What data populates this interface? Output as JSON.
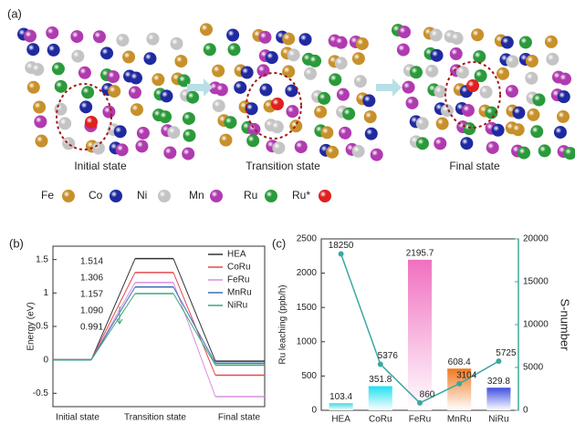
{
  "panel_a": {
    "label": "(a)",
    "states": [
      "Initial state",
      "Transition state",
      "Final state"
    ],
    "legend": [
      {
        "name": "Fe",
        "color": "#c8902a"
      },
      {
        "name": "Co",
        "color": "#1f2aa0"
      },
      {
        "name": "Ni",
        "color": "#c4c4c4"
      },
      {
        "name": "Mn",
        "color": "#b03ab0"
      },
      {
        "name": "Ru",
        "color": "#2a9a3a"
      },
      {
        "name": "Ru*",
        "color": "#e02020"
      }
    ]
  },
  "chart_data": [
    {
      "type": "energy_profile",
      "panel": "(b)",
      "ylabel": "Energy (eV)",
      "categories": [
        "Initial state",
        "Transition state",
        "Final state"
      ],
      "series": [
        {
          "name": "HEA",
          "color": "#333333",
          "values": [
            0,
            1.514,
            -0.02
          ],
          "value_labels": [
            null,
            "1.514",
            null
          ]
        },
        {
          "name": "CoRu",
          "color": "#e8474c",
          "values": [
            0,
            1.306,
            -0.23
          ],
          "value_labels": [
            null,
            "1.306",
            null
          ]
        },
        {
          "name": "FeRu",
          "color": "#d98ee0",
          "values": [
            0,
            1.157,
            -0.55
          ],
          "value_labels": [
            null,
            "1.157",
            null
          ]
        },
        {
          "name": "MnRu",
          "color": "#3b6fb6",
          "values": [
            0,
            1.09,
            -0.05
          ],
          "value_labels": [
            null,
            "1.090",
            null
          ]
        },
        {
          "name": "NiRu",
          "color": "#3aa67a",
          "values": [
            0,
            0.991,
            -0.08
          ],
          "value_labels": [
            null,
            "0.991",
            null
          ]
        }
      ],
      "ylim": [
        -0.7,
        1.7
      ],
      "yticks": [
        -0.5,
        0,
        0.5,
        1,
        1.5
      ],
      "legend": "upper right"
    },
    {
      "type": "bar_line",
      "panel": "(c)",
      "ylabel": "Ru leaching (ppb/h)",
      "y2label": "S-number",
      "categories": [
        "HEA",
        "CoRu",
        "FeRu",
        "MnRu",
        "NiRu"
      ],
      "series": [
        {
          "name": "Ru leaching",
          "type": "bar",
          "colors": [
            "#40d8e0",
            "#20e0f0",
            "#f070c0",
            "#f07820",
            "#4050e0"
          ],
          "values": [
            103.4,
            351.8,
            2195.7,
            608.4,
            329.8
          ]
        },
        {
          "name": "S-number",
          "type": "line",
          "axis": "y2",
          "color": "#3aa8a0",
          "values": [
            18250,
            5376,
            860,
            3104,
            5725
          ]
        }
      ],
      "ylim": [
        0,
        2500
      ],
      "yticks": [
        0,
        500,
        1000,
        1500,
        2000,
        2500
      ],
      "y2lim": [
        0,
        20000
      ],
      "y2ticks": [
        0,
        5000,
        10000,
        15000,
        20000
      ]
    }
  ]
}
